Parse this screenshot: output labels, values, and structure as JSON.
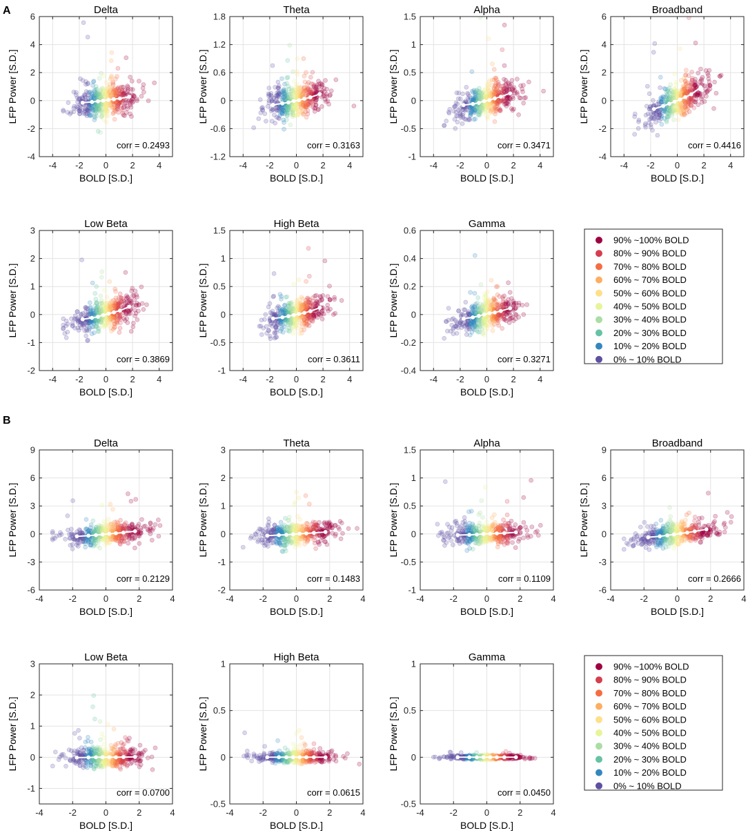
{
  "figure": {
    "xlabel": "BOLD [S.D.]",
    "ylabel": "LFP Power [S.D.]",
    "corr_prefix": "corr = "
  },
  "colors": [
    "#5e4fa2",
    "#3288bd",
    "#66c2a5",
    "#abdda4",
    "#e6f598",
    "#fee08b",
    "#fdae61",
    "#f46d43",
    "#d53e4f",
    "#9e0142"
  ],
  "legend_labels": [
    "0% ~ 10% BOLD",
    "10% ~ 20% BOLD",
    "20% ~ 30% BOLD",
    "30% ~ 40% BOLD",
    "40% ~ 50% BOLD",
    "50% ~ 60% BOLD",
    "60% ~ 70% BOLD",
    "70% ~ 80% BOLD",
    "80% ~ 90% BOLD",
    "90% ~100% BOLD"
  ],
  "panels": [
    {
      "label": "A",
      "chart_data": [
        {
          "type": "scatter",
          "title": "Delta",
          "xlabel": "BOLD [S.D.]",
          "ylabel": "LFP Power [S.D.]",
          "xlim": [
            -5,
            5
          ],
          "xticks": [
            -4,
            -2,
            0,
            2,
            4
          ],
          "ylim": [
            -4,
            6
          ],
          "yticks": [
            -4,
            -2,
            0,
            2,
            4,
            6
          ],
          "corr": "0.2493",
          "spread": 1.0,
          "means": {
            "x": [
              -1.75,
              -1.05,
              -0.6,
              -0.2,
              0.2,
              0.6,
              1.05,
              1.75
            ],
            "y": [
              -0.15,
              -0.1,
              -0.05,
              0.0,
              0.05,
              0.1,
              0.15,
              0.28
            ]
          }
        },
        {
          "type": "scatter",
          "title": "Theta",
          "xlabel": "BOLD [S.D.]",
          "ylabel": "LFP Power [S.D.]",
          "xlim": [
            -5,
            5
          ],
          "xticks": [
            -4,
            -2,
            0,
            2,
            4
          ],
          "ylim": [
            -1.2,
            1.8
          ],
          "yticks": [
            -1.2,
            -0.6,
            0,
            0.6,
            1.2,
            1.8
          ],
          "corr": "0.3163",
          "spread": 0.32,
          "means": {
            "x": [
              -1.75,
              -1.05,
              -0.6,
              -0.2,
              0.2,
              0.6,
              1.05,
              1.75
            ],
            "y": [
              -0.09,
              -0.06,
              -0.04,
              -0.01,
              0.01,
              0.04,
              0.07,
              0.14
            ]
          }
        },
        {
          "type": "scatter",
          "title": "Alpha",
          "xlabel": "BOLD [S.D.]",
          "ylabel": "LFP Power [S.D.]",
          "xlim": [
            -5,
            5
          ],
          "xticks": [
            -4,
            -2,
            0,
            2,
            4
          ],
          "ylim": [
            -1,
            1.5
          ],
          "yticks": [
            -1,
            -0.5,
            0,
            0.5,
            1,
            1.5
          ],
          "corr": "0.3471",
          "spread": 0.25,
          "means": {
            "x": [
              -1.75,
              -1.05,
              -0.6,
              -0.2,
              0.2,
              0.6,
              1.05,
              1.75
            ],
            "y": [
              -0.08,
              -0.06,
              -0.04,
              -0.01,
              0.01,
              0.04,
              0.07,
              0.13
            ]
          }
        },
        {
          "type": "scatter",
          "title": "Broadband",
          "xlabel": "BOLD [S.D.]",
          "ylabel": "LFP Power [S.D.]",
          "xlim": [
            -5,
            5
          ],
          "xticks": [
            -4,
            -2,
            0,
            2,
            4
          ],
          "ylim": [
            -4,
            6
          ],
          "yticks": [
            -4,
            -2,
            0,
            2,
            4,
            6
          ],
          "corr": "0.4416",
          "spread": 1.05,
          "means": {
            "x": [
              -1.75,
              -1.05,
              -0.6,
              -0.2,
              0.2,
              0.6,
              1.05,
              1.75
            ],
            "y": [
              -0.6,
              -0.38,
              -0.22,
              -0.08,
              0.08,
              0.25,
              0.45,
              0.95
            ]
          }
        },
        {
          "type": "scatter",
          "title": "Low Beta",
          "xlabel": "BOLD [S.D.]",
          "ylabel": "LFP Power [S.D.]",
          "xlim": [
            -5,
            5
          ],
          "xticks": [
            -4,
            -2,
            0,
            2,
            4
          ],
          "ylim": [
            -2,
            3
          ],
          "yticks": [
            -2,
            -1,
            0,
            1,
            2,
            3
          ],
          "corr": "0.3869",
          "spread": 0.45,
          "means": {
            "x": [
              -1.75,
              -1.05,
              -0.6,
              -0.2,
              0.2,
              0.6,
              1.05,
              1.75
            ],
            "y": [
              -0.17,
              -0.12,
              -0.08,
              -0.02,
              0.03,
              0.08,
              0.14,
              0.28
            ]
          }
        },
        {
          "type": "scatter",
          "title": "High Beta",
          "xlabel": "BOLD [S.D.]",
          "ylabel": "LFP Power [S.D.]",
          "xlim": [
            -5,
            5
          ],
          "xticks": [
            -4,
            -2,
            0,
            2,
            4
          ],
          "ylim": [
            -1,
            1.5
          ],
          "yticks": [
            -1,
            -0.5,
            0,
            0.5,
            1,
            1.5
          ],
          "corr": "0.3611",
          "spread": 0.22,
          "means": {
            "x": [
              -1.75,
              -1.05,
              -0.6,
              -0.2,
              0.2,
              0.6,
              1.05,
              1.75
            ],
            "y": [
              -0.07,
              -0.05,
              -0.03,
              -0.01,
              0.01,
              0.03,
              0.06,
              0.12
            ]
          }
        },
        {
          "type": "scatter",
          "title": "Gamma",
          "xlabel": "BOLD [S.D.]",
          "ylabel": "LFP Power [S.D.]",
          "xlim": [
            -5,
            5
          ],
          "xticks": [
            -4,
            -2,
            0,
            2,
            4
          ],
          "ylim": [
            -0.4,
            0.6
          ],
          "yticks": [
            -0.4,
            -0.2,
            0,
            0.2,
            0.4,
            0.6
          ],
          "corr": "0.3271",
          "spread": 0.09,
          "means": {
            "x": [
              -1.75,
              -1.05,
              -0.6,
              -0.2,
              0.2,
              0.6,
              1.05,
              1.75
            ],
            "y": [
              -0.03,
              -0.02,
              -0.01,
              0.0,
              0.01,
              0.015,
              0.025,
              0.045
            ]
          }
        }
      ]
    },
    {
      "label": "B",
      "chart_data": [
        {
          "type": "scatter",
          "title": "Delta",
          "xlabel": "BOLD [S.D.]",
          "ylabel": "LFP Power [S.D.]",
          "xlim": [
            -4,
            4
          ],
          "xticks": [
            -4,
            -2,
            0,
            2,
            4
          ],
          "ylim": [
            -6,
            9
          ],
          "yticks": [
            -6,
            -3,
            0,
            3,
            6,
            9
          ],
          "corr": "0.2129",
          "spread": 1.0,
          "means": {
            "x": [
              -1.75,
              -1.05,
              -0.6,
              -0.2,
              0.2,
              0.6,
              1.05,
              1.75
            ],
            "y": [
              -0.25,
              -0.18,
              -0.12,
              -0.05,
              0.02,
              0.08,
              0.15,
              0.3
            ]
          }
        },
        {
          "type": "scatter",
          "title": "Theta",
          "xlabel": "BOLD [S.D.]",
          "ylabel": "LFP Power [S.D.]",
          "xlim": [
            -4,
            4
          ],
          "xticks": [
            -4,
            -2,
            0,
            2,
            4
          ],
          "ylim": [
            -2,
            3
          ],
          "yticks": [
            -2,
            -1,
            0,
            1,
            2,
            3
          ],
          "corr": "0.1483",
          "spread": 0.35,
          "means": {
            "x": [
              -1.75,
              -1.05,
              -0.6,
              -0.2,
              0.2,
              0.6,
              1.05,
              1.75
            ],
            "y": [
              -0.06,
              -0.04,
              -0.03,
              -0.01,
              0.01,
              0.02,
              0.04,
              0.07
            ]
          }
        },
        {
          "type": "scatter",
          "title": "Alpha",
          "xlabel": "BOLD [S.D.]",
          "ylabel": "LFP Power [S.D.]",
          "xlim": [
            -4,
            4
          ],
          "xticks": [
            -4,
            -2,
            0,
            2,
            4
          ],
          "ylim": [
            -1,
            1.5
          ],
          "yticks": [
            -1,
            -0.5,
            0,
            0.5,
            1,
            1.5
          ],
          "corr": "0.1109",
          "spread": 0.17,
          "means": {
            "x": [
              -1.75,
              -1.05,
              -0.6,
              -0.2,
              0.2,
              0.6,
              1.05,
              1.75
            ],
            "y": [
              -0.02,
              -0.015,
              -0.01,
              0.0,
              0.005,
              0.01,
              0.015,
              0.03
            ]
          }
        },
        {
          "type": "scatter",
          "title": "Broadband",
          "xlabel": "BOLD [S.D.]",
          "ylabel": "LFP Power [S.D.]",
          "xlim": [
            -4,
            4
          ],
          "xticks": [
            -4,
            -2,
            0,
            2,
            4
          ],
          "ylim": [
            -6,
            9
          ],
          "yticks": [
            -6,
            -3,
            0,
            3,
            6,
            9
          ],
          "corr": "0.2666",
          "spread": 1.0,
          "means": {
            "x": [
              -1.75,
              -1.05,
              -0.6,
              -0.2,
              0.2,
              0.6,
              1.05,
              1.75
            ],
            "y": [
              -0.35,
              -0.25,
              -0.15,
              -0.05,
              0.05,
              0.15,
              0.28,
              0.5
            ]
          }
        },
        {
          "type": "scatter",
          "title": "Low Beta",
          "xlabel": "BOLD [S.D.]",
          "ylabel": "LFP Power [S.D.]",
          "xlim": [
            -4,
            4
          ],
          "xticks": [
            -4,
            -2,
            0,
            2,
            4
          ],
          "ylim": [
            -1.5,
            3
          ],
          "yticks": [
            -1,
            0,
            1,
            2,
            3
          ],
          "corr": "0.0700",
          "spread": 0.3,
          "means": {
            "x": [
              -1.75,
              -1.05,
              -0.6,
              -0.2,
              0.2,
              0.6,
              1.05,
              1.75
            ],
            "y": [
              -0.01,
              -0.005,
              0.0,
              0.0,
              0.0,
              0.0,
              0.005,
              0.01
            ]
          }
        },
        {
          "type": "scatter",
          "title": "High Beta",
          "xlabel": "BOLD [S.D.]",
          "ylabel": "LFP Power [S.D.]",
          "xlim": [
            -4,
            4
          ],
          "xticks": [
            -4,
            -2,
            0,
            2,
            4
          ],
          "ylim": [
            -0.5,
            1
          ],
          "yticks": [
            -0.5,
            0,
            0.5,
            1
          ],
          "corr": "0.0615",
          "spread": 0.05,
          "means": {
            "x": [
              -1.75,
              -1.05,
              -0.6,
              -0.2,
              0.2,
              0.6,
              1.05,
              1.75
            ],
            "y": [
              0.0,
              0.0,
              0.0,
              0.0,
              0.0,
              0.0,
              0.0,
              0.0
            ]
          }
        },
        {
          "type": "scatter",
          "title": "Gamma",
          "xlabel": "BOLD [S.D.]",
          "ylabel": "LFP Power [S.D.]",
          "xlim": [
            -4,
            4
          ],
          "xticks": [
            -4,
            -2,
            0,
            2,
            4
          ],
          "ylim": [
            -0.5,
            1
          ],
          "yticks": [
            -0.5,
            0,
            0.5,
            1
          ],
          "corr": "0.0450",
          "spread": 0.02,
          "means": {
            "x": [
              -1.75,
              -1.05,
              -0.6,
              -0.2,
              0.2,
              0.6,
              1.05,
              1.75
            ],
            "y": [
              0.0,
              0.0,
              0.0,
              0.0,
              0.0,
              0.0,
              0.0,
              0.0
            ]
          }
        }
      ]
    }
  ]
}
